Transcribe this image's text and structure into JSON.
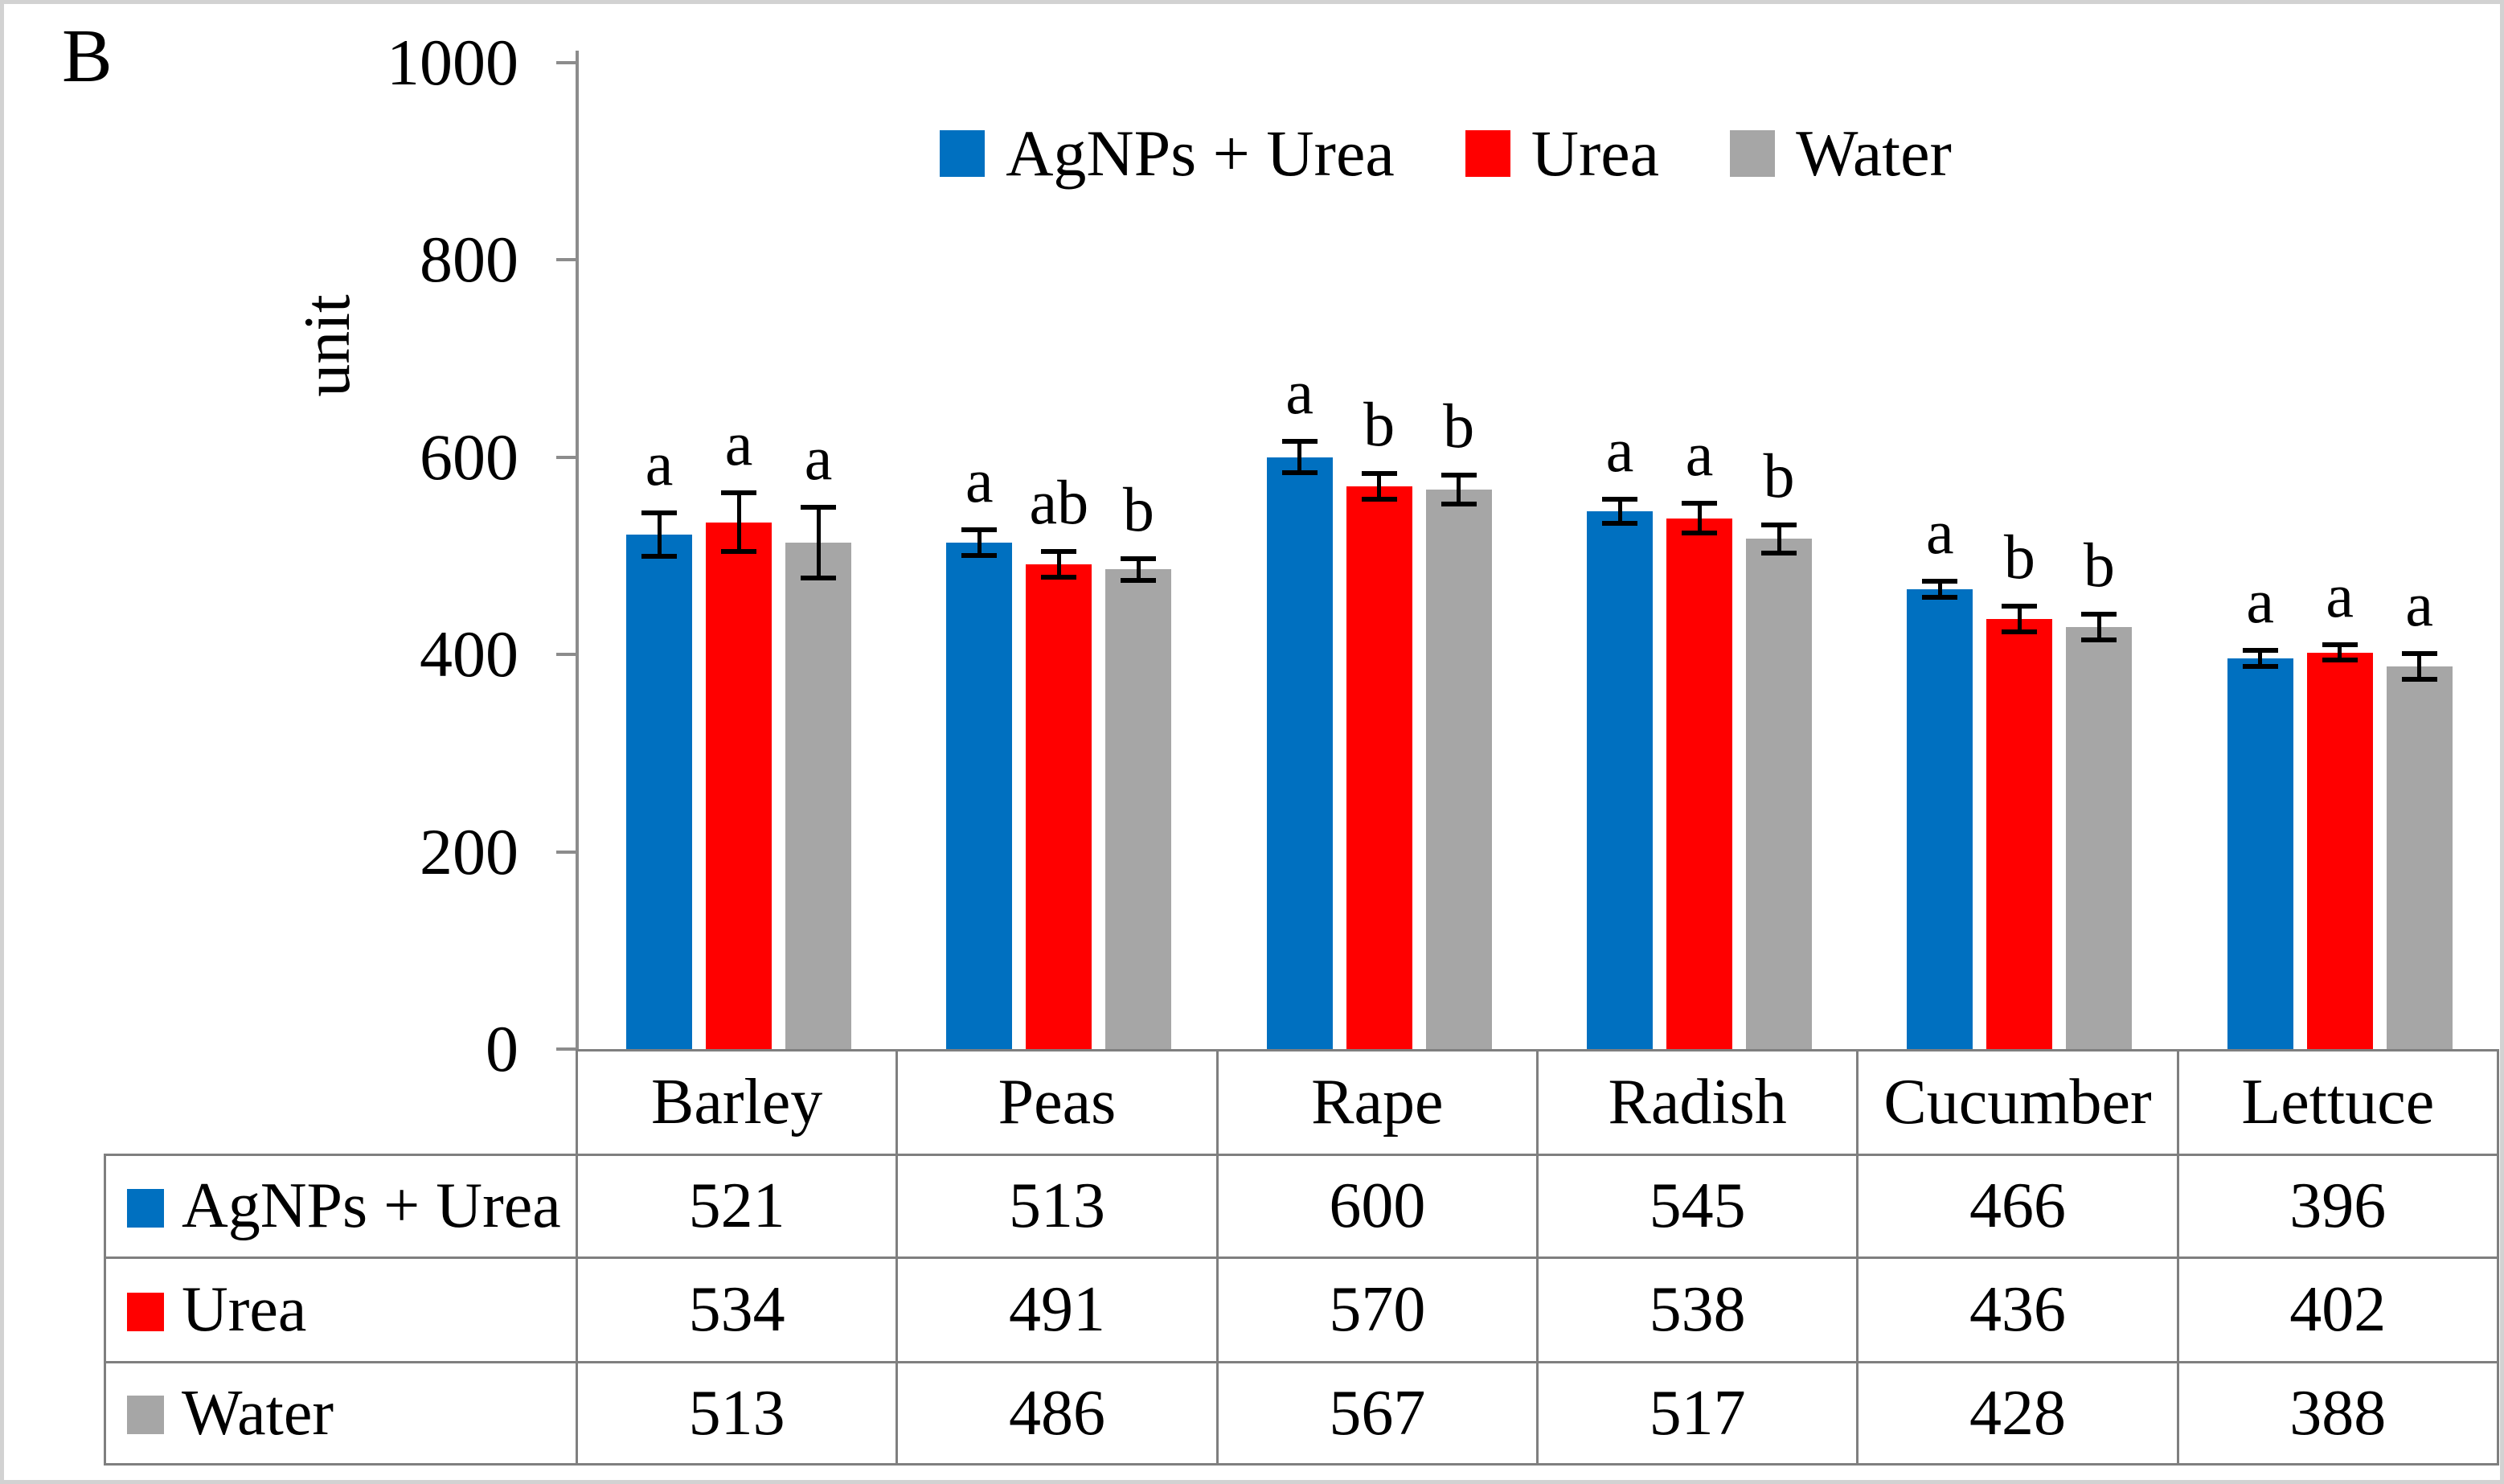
{
  "panel_label": "B",
  "colors": {
    "agnps_urea": "#0070C0",
    "urea": "#FF0000",
    "water": "#A6A6A6",
    "error_bar": "#000000",
    "axis_line": "#8C8C8C",
    "table_border": "#7F7F7F",
    "frame_border": "#D2D2D2",
    "text": "#000000"
  },
  "chart_data": {
    "type": "bar",
    "title": "",
    "y_axis_title": "unit",
    "xlabel": "",
    "ylim": [
      0,
      1000
    ],
    "yticks": [
      0,
      200,
      400,
      600,
      800,
      1000
    ],
    "grid": false,
    "legend_position": "top-center",
    "error_bars": true,
    "categories": [
      "Barley",
      "Peas",
      "Rape",
      "Radish",
      "Cucumber",
      "Lettuce"
    ],
    "series": [
      {
        "name": "AgNPs + Urea",
        "color_key": "agnps_urea",
        "values": [
          521,
          513,
          600,
          545,
          466,
          396
        ],
        "errors": [
          22,
          13,
          16,
          12,
          8,
          8
        ],
        "sig_letters": [
          "a",
          "a",
          "a",
          "a",
          "a",
          "a"
        ]
      },
      {
        "name": "Urea",
        "color_key": "urea",
        "values": [
          534,
          491,
          570,
          538,
          436,
          402
        ],
        "errors": [
          30,
          13,
          13,
          15,
          13,
          8
        ],
        "sig_letters": [
          "a",
          "ab",
          "b",
          "a",
          "b",
          "a"
        ]
      },
      {
        "name": "Water",
        "color_key": "water",
        "values": [
          513,
          486,
          567,
          517,
          428,
          388
        ],
        "errors": [
          36,
          11,
          15,
          14,
          13,
          13
        ],
        "sig_letters": [
          "a",
          "b",
          "b",
          "b",
          "b",
          "a"
        ]
      }
    ]
  }
}
